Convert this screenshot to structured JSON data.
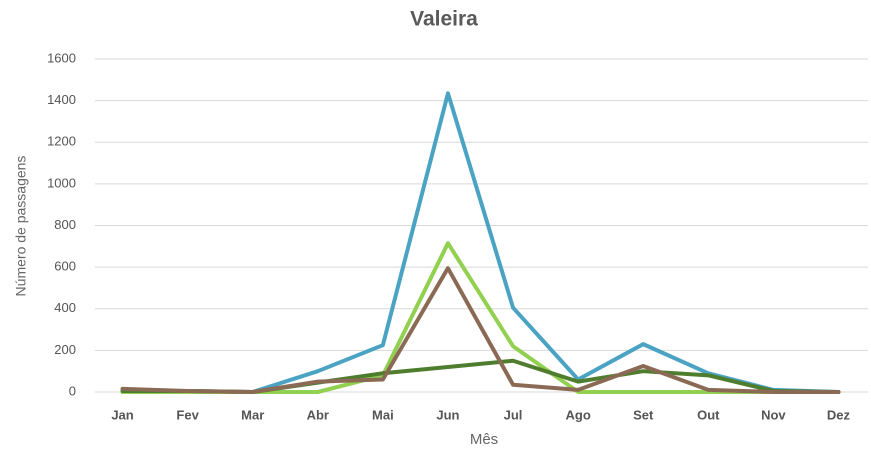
{
  "chart_data": {
    "type": "line",
    "title": "Valeira",
    "x_label": "Mês",
    "y_label": "Número de passagens",
    "categories": [
      "Jan",
      "Fev",
      "Mar",
      "Abr",
      "Mai",
      "Jun",
      "Jul",
      "Ago",
      "Set",
      "Out",
      "Nov",
      "Dez"
    ],
    "series": [
      {
        "color": "#4ba3c3",
        "values": [
          5,
          5,
          0,
          100,
          225,
          1435,
          405,
          60,
          230,
          90,
          10,
          0
        ]
      },
      {
        "color": "#92d050",
        "values": [
          0,
          0,
          0,
          0,
          80,
          715,
          220,
          0,
          0,
          0,
          0,
          0
        ]
      },
      {
        "color": "#4e7d2e",
        "values": [
          5,
          5,
          0,
          45,
          90,
          120,
          150,
          50,
          100,
          80,
          5,
          0
        ]
      },
      {
        "color": "#8b6a55",
        "values": [
          15,
          5,
          0,
          50,
          60,
          595,
          35,
          10,
          125,
          10,
          0,
          0
        ]
      }
    ],
    "ylim": [
      0,
      1600
    ],
    "yticks": [
      0,
      200,
      400,
      600,
      800,
      1000,
      1200,
      1400,
      1600
    ],
    "grid": true
  }
}
